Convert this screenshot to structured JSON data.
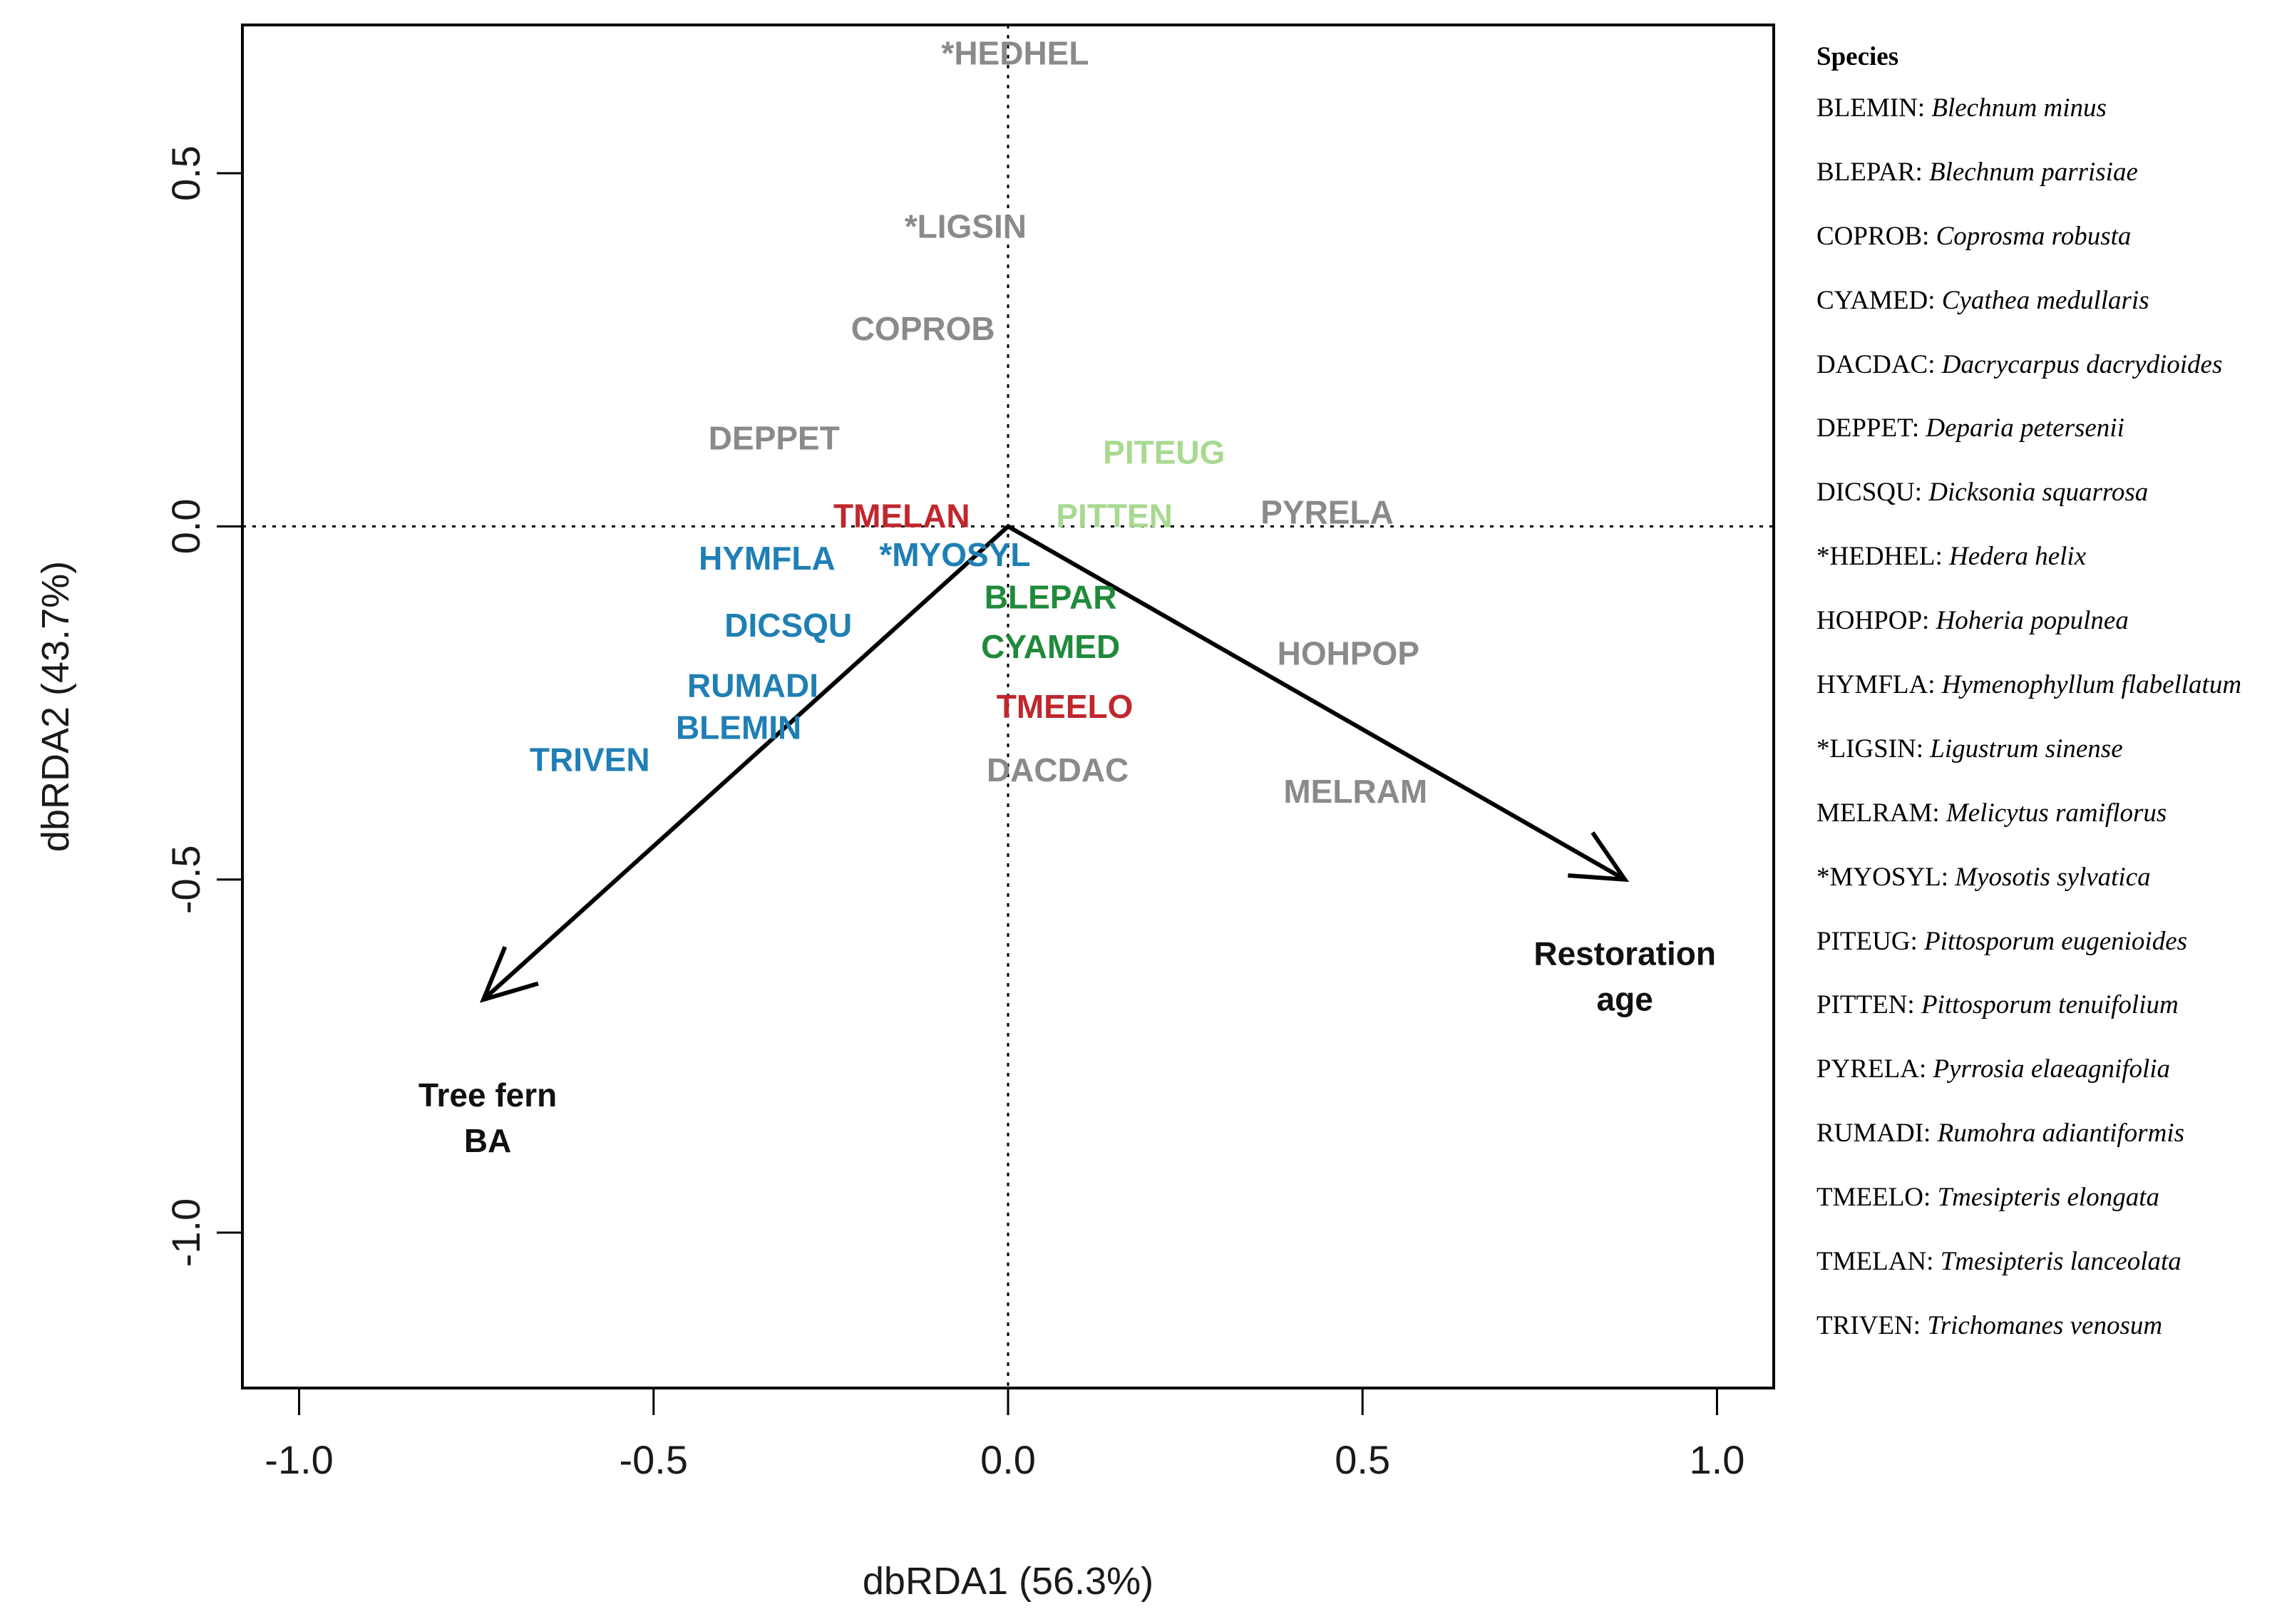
{
  "chart_data": {
    "type": "scatter",
    "subtype": "dbRDA biplot",
    "xlabel": "dbRDA1 (56.3%)",
    "ylabel": "dbRDA2 (43.7%)",
    "xlim": [
      -1.08,
      1.08
    ],
    "ylim": [
      -1.22,
      0.71
    ],
    "xticks": [
      -1.0,
      -0.5,
      0.0,
      0.5,
      1.0
    ],
    "xtick_labels": [
      "-1.0",
      "-0.5",
      "0.0",
      "0.5",
      "1.0"
    ],
    "yticks": [
      -1.0,
      -0.5,
      0.0,
      0.5
    ],
    "ytick_labels": [
      "-1.0",
      "-0.5",
      "0.0",
      "0.5"
    ],
    "reference_lines": {
      "x": 0.0,
      "y": 0.0,
      "style": "dotted"
    },
    "points": [
      {
        "label": "*HEDHEL",
        "x": 0.01,
        "y": 0.67,
        "color": "#8a8a8a"
      },
      {
        "label": "*LIGSIN",
        "x": -0.06,
        "y": 0.425,
        "color": "#8a8a8a"
      },
      {
        "label": "COPROB",
        "x": -0.12,
        "y": 0.28,
        "color": "#8a8a8a"
      },
      {
        "label": "DEPPET",
        "x": -0.33,
        "y": 0.125,
        "color": "#8a8a8a"
      },
      {
        "label": "PITEUG",
        "x": 0.22,
        "y": 0.105,
        "color": "#a8d990"
      },
      {
        "label": "TMELAN",
        "x": -0.15,
        "y": 0.015,
        "color": "#c0272d"
      },
      {
        "label": "PITTEN",
        "x": 0.15,
        "y": 0.015,
        "color": "#a8d990"
      },
      {
        "label": "PYRELA",
        "x": 0.45,
        "y": 0.02,
        "color": "#8a8a8a"
      },
      {
        "label": "HYMFLA",
        "x": -0.34,
        "y": -0.045,
        "color": "#1f7fb4"
      },
      {
        "label": "*MYOSYL",
        "x": -0.075,
        "y": -0.04,
        "color": "#1f7fb4"
      },
      {
        "label": "BLEPAR",
        "x": 0.06,
        "y": -0.1,
        "color": "#1f8a3a"
      },
      {
        "label": "DICSQU",
        "x": -0.31,
        "y": -0.14,
        "color": "#1f7fb4"
      },
      {
        "label": "CYAMED",
        "x": 0.06,
        "y": -0.17,
        "color": "#1f8a3a"
      },
      {
        "label": "HOHPOP",
        "x": 0.48,
        "y": -0.18,
        "color": "#8a8a8a"
      },
      {
        "label": "RUMADI",
        "x": -0.36,
        "y": -0.225,
        "color": "#1f7fb4"
      },
      {
        "label": "TMEELO",
        "x": 0.08,
        "y": -0.255,
        "color": "#c0272d"
      },
      {
        "label": "BLEMIN",
        "x": -0.38,
        "y": -0.285,
        "color": "#1f7fb4"
      },
      {
        "label": "TRIVEN",
        "x": -0.59,
        "y": -0.33,
        "color": "#1f7fb4"
      },
      {
        "label": "DACDAC",
        "x": 0.07,
        "y": -0.345,
        "color": "#8a8a8a"
      },
      {
        "label": "MELRAM",
        "x": 0.49,
        "y": -0.375,
        "color": "#8a8a8a"
      }
    ],
    "vectors": [
      {
        "name": "Tree fern BA",
        "label_lines": [
          "Tree fern",
          "BA"
        ],
        "x": -0.74,
        "y": -0.67
      },
      {
        "name": "Restoration age",
        "label_lines": [
          "Restoration",
          "age"
        ],
        "x": 0.87,
        "y": -0.5
      }
    ]
  },
  "legend": {
    "title": "Species",
    "items": [
      {
        "code": "BLEMIN",
        "name": "Blechnum minus"
      },
      {
        "code": "BLEPAR",
        "name": "Blechnum parrisiae"
      },
      {
        "code": "COPROB",
        "name": "Coprosma robusta"
      },
      {
        "code": "CYAMED",
        "name": "Cyathea medullaris"
      },
      {
        "code": "DACDAC",
        "name": "Dacrycarpus dacrydioides"
      },
      {
        "code": "DEPPET",
        "name": "Deparia petersenii"
      },
      {
        "code": "DICSQU",
        "name": "Dicksonia squarrosa"
      },
      {
        "code": "*HEDHEL",
        "name": "Hedera helix"
      },
      {
        "code": "HOHPOP",
        "name": "Hoheria populnea"
      },
      {
        "code": "HYMFLA",
        "name": "Hymenophyllum flabellatum"
      },
      {
        "code": "*LIGSIN",
        "name": "Ligustrum sinense"
      },
      {
        "code": "MELRAM",
        "name": "Melicytus ramiflorus"
      },
      {
        "code": "*MYOSYL",
        "name": "Myosotis sylvatica"
      },
      {
        "code": "PITEUG",
        "name": "Pittosporum eugenioides"
      },
      {
        "code": "PITTEN",
        "name": "Pittosporum tenuifolium"
      },
      {
        "code": "PYRELA",
        "name": "Pyrrosia elaeagnifolia"
      },
      {
        "code": "RUMADI",
        "name": "Rumohra adiantiformis"
      },
      {
        "code": "TMEELO",
        "name": "Tmesipteris elongata"
      },
      {
        "code": "TMELAN",
        "name": "Tmesipteris lanceolata"
      },
      {
        "code": "TRIVEN",
        "name": "Trichomanes venosum"
      }
    ]
  }
}
